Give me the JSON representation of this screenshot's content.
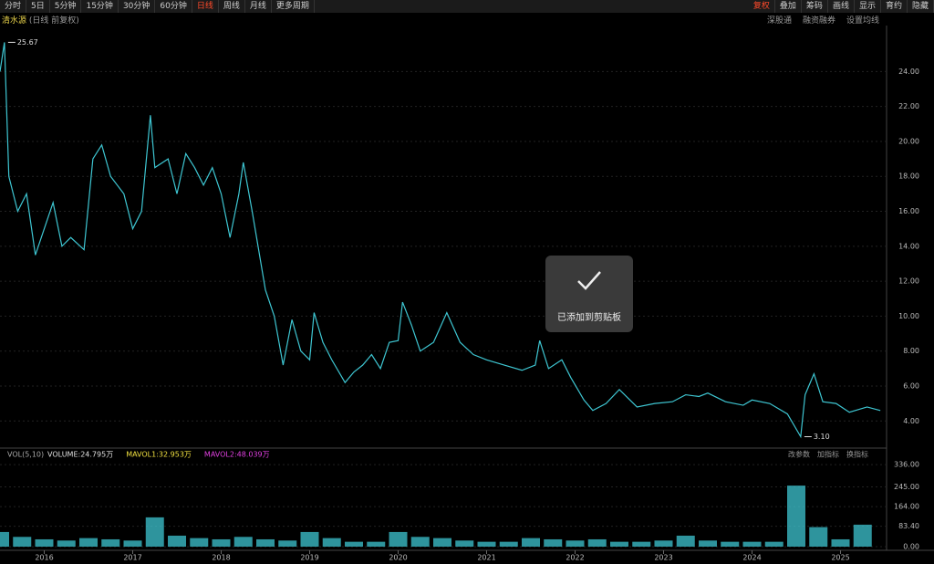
{
  "toolbar": {
    "tabs": [
      "分时",
      "5日",
      "5分钟",
      "15分钟",
      "30分钟",
      "60分钟",
      "日线",
      "周线",
      "月线",
      "更多周期"
    ],
    "right_tabs": [
      "复权",
      "叠加",
      "筹码",
      "画线",
      "显示",
      "育约",
      "隐藏"
    ]
  },
  "header": {
    "name": "清水源",
    "mode": "(日线 前复权)",
    "links": [
      "深股通",
      "融资融券",
      "设置均线"
    ]
  },
  "toast": "已添加到剪贴板",
  "chart_data": [
    {
      "type": "line",
      "series": [
        {
          "name": "清水源",
          "color": "#3ec6d2",
          "x": [
            2015.5,
            2015.55,
            2015.6,
            2015.7,
            2015.8,
            2015.9,
            2016.0,
            2016.1,
            2016.2,
            2016.3,
            2016.45,
            2016.55,
            2016.65,
            2016.75,
            2016.9,
            2017.0,
            2017.1,
            2017.2,
            2017.25,
            2017.4,
            2017.5,
            2017.6,
            2017.7,
            2017.8,
            2017.9,
            2018.0,
            2018.1,
            2018.2,
            2018.25,
            2018.35,
            2018.4,
            2018.5,
            2018.6,
            2018.7,
            2018.8,
            2018.9,
            2019.0,
            2019.05,
            2019.15,
            2019.25,
            2019.4,
            2019.5,
            2019.6,
            2019.7,
            2019.8,
            2019.9,
            2020.0,
            2020.05,
            2020.15,
            2020.25,
            2020.4,
            2020.55,
            2020.7,
            2020.85,
            2021.0,
            2021.2,
            2021.4,
            2021.55,
            2021.6,
            2021.7,
            2021.85,
            2021.95,
            2022.1,
            2022.2,
            2022.35,
            2022.5,
            2022.7,
            2022.9,
            2023.1,
            2023.25,
            2023.4,
            2023.5,
            2023.7,
            2023.9,
            2024.0,
            2024.2,
            2024.4,
            2024.55,
            2024.6,
            2024.7,
            2024.8,
            2024.95,
            2025.1,
            2025.3,
            2025.45
          ],
          "values": [
            24,
            25.67,
            18,
            16,
            17,
            13.5,
            15,
            16.5,
            14,
            14.5,
            13.8,
            19,
            19.8,
            18,
            17,
            15,
            16,
            21.5,
            18.5,
            19,
            17,
            19.3,
            18.5,
            17.5,
            18.5,
            17,
            14.5,
            17,
            18.8,
            16,
            14.5,
            11.5,
            10,
            7.2,
            9.8,
            8,
            7.5,
            10.2,
            8.5,
            7.5,
            6.2,
            6.8,
            7.2,
            7.8,
            7,
            8.5,
            8.6,
            10.8,
            9.5,
            8,
            8.5,
            10.2,
            8.5,
            7.8,
            7.5,
            7.2,
            6.9,
            7.2,
            8.6,
            7,
            7.5,
            6.5,
            5.2,
            4.6,
            5,
            5.8,
            4.8,
            5,
            5.1,
            5.5,
            5.4,
            5.6,
            5.1,
            4.9,
            5.2,
            5,
            4.4,
            3.1,
            5.5,
            6.7,
            5.1,
            5,
            4.5,
            4.8,
            4.6
          ]
        }
      ],
      "annotations": [
        "25.67",
        "3.10"
      ],
      "xlim": [
        2015.5,
        2025.5
      ],
      "ylim": [
        2.5,
        25.9
      ],
      "yticks": [
        {
          "value": 4,
          "label": "4.00"
        },
        {
          "value": 6,
          "label": "6.00"
        },
        {
          "value": 8,
          "label": "8.00"
        },
        {
          "value": 10,
          "label": "10.00"
        },
        {
          "value": 12,
          "label": "12.00"
        },
        {
          "value": 14,
          "label": "14.00"
        },
        {
          "value": 16,
          "label": "16.00"
        },
        {
          "value": 18,
          "label": "18.00"
        },
        {
          "value": 20,
          "label": "20.00"
        },
        {
          "value": 22,
          "label": "22.00"
        },
        {
          "value": 24,
          "label": "24.00"
        }
      ],
      "grid": true
    },
    {
      "type": "bar",
      "title": "VOL(5,10)",
      "indicators": [
        "VOLUME:24.795万",
        "MAVOL1:32.953万",
        "MAVOL2:48.039万"
      ],
      "indicator_colors": [
        "#e0e0e0",
        "#f0e040",
        "#e040e0"
      ],
      "buttons": [
        "改参数",
        "加指标",
        "换指标"
      ],
      "series": [
        {
          "name": "VOLUME",
          "color": "#3ec6d2",
          "x": [
            2015.5,
            2015.75,
            2016,
            2016.25,
            2016.5,
            2016.75,
            2017,
            2017.25,
            2017.5,
            2017.75,
            2018,
            2018.25,
            2018.5,
            2018.75,
            2019,
            2019.25,
            2019.5,
            2019.75,
            2020,
            2020.25,
            2020.5,
            2020.75,
            2021,
            2021.25,
            2021.5,
            2021.75,
            2022,
            2022.25,
            2022.5,
            2022.75,
            2023,
            2023.25,
            2023.5,
            2023.75,
            2024,
            2024.25,
            2024.5,
            2024.75,
            2025,
            2025.25
          ],
          "values": [
            60,
            40,
            30,
            25,
            35,
            30,
            25,
            120,
            45,
            35,
            30,
            40,
            30,
            25,
            60,
            35,
            20,
            20,
            60,
            40,
            35,
            25,
            20,
            20,
            35,
            30,
            25,
            30,
            20,
            20,
            25,
            45,
            25,
            20,
            20,
            20,
            250,
            80,
            30,
            90
          ]
        }
      ],
      "xlim": [
        2015.5,
        2025.5
      ],
      "xticks": [
        2016,
        2017,
        2018,
        2019,
        2020,
        2021,
        2022,
        2023,
        2024,
        2025
      ],
      "ylim": [
        -15,
        370
      ],
      "yticks": [
        {
          "value": 0,
          "label": "0.00"
        },
        {
          "value": 83.4,
          "label": "83.40"
        },
        {
          "value": 164,
          "label": "164.00"
        },
        {
          "value": 245,
          "label": "245.00"
        },
        {
          "value": 336,
          "label": "336.00"
        }
      ],
      "grid": true
    }
  ]
}
